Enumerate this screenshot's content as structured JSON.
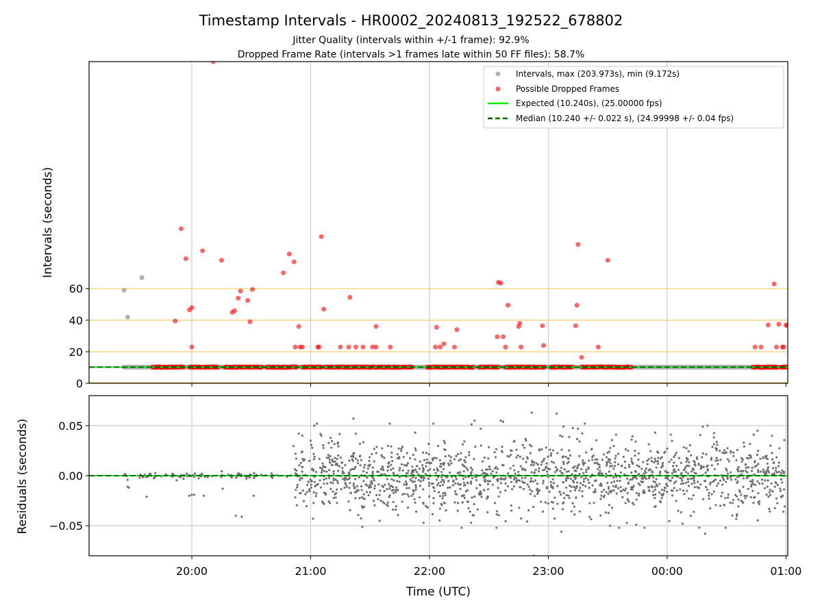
{
  "figure": {
    "title": "Timestamp Intervals - HR0002_20240813_192522_678802",
    "subtitle_1": "Jitter Quality (intervals within +/-1 frame): 92.9%",
    "subtitle_2": "Dropped Frame Rate (intervals >1 frames late within 50 FF files): 58.7%",
    "xlabel": "Time (UTC)"
  },
  "chart_data": [
    {
      "type": "scatter",
      "ylabel": "Intervals (seconds)",
      "xlim_hours": [
        19.135,
        25.015
      ],
      "ylim": [
        0,
        203.973
      ],
      "yticks": [
        0,
        20,
        40,
        60
      ],
      "x_tick_labels": [
        "20:00",
        "21:00",
        "22:00",
        "23:00",
        "00:00",
        "01:00"
      ],
      "x_tick_hours": [
        20,
        21,
        22,
        23,
        24,
        25
      ],
      "x_grid_hours": [
        20,
        21,
        22,
        23,
        24
      ],
      "reference_lines": [
        20,
        40,
        60
      ],
      "legend_position": "top-right",
      "series": [
        {
          "name": "Intervals, max (203.973s), min (9.172s)",
          "color": "#808080",
          "points": [
            [
              19.43,
              59
            ],
            [
              19.46,
              42
            ],
            [
              19.58,
              67
            ]
          ],
          "baseline_band": {
            "x_start": 19.43,
            "x_end": 24.99,
            "y": 10.24
          }
        },
        {
          "name": "Possible Dropped Frames",
          "color": "#ff0000",
          "points": [
            [
              20.18,
              203.9
            ],
            [
              19.91,
              98
            ],
            [
              19.95,
              79
            ],
            [
              20.09,
              84
            ],
            [
              20.25,
              78
            ],
            [
              19.86,
              39.5
            ],
            [
              19.98,
              46.5
            ],
            [
              20.0,
              48
            ],
            [
              20.0,
              23
            ],
            [
              20.34,
              45
            ],
            [
              20.36,
              46
            ],
            [
              20.39,
              54
            ],
            [
              20.41,
              58.5
            ],
            [
              20.47,
              52.5
            ],
            [
              20.51,
              59.5
            ],
            [
              20.49,
              39
            ],
            [
              20.77,
              70
            ],
            [
              20.82,
              82
            ],
            [
              20.86,
              77
            ],
            [
              20.87,
              23
            ],
            [
              20.9,
              36
            ],
            [
              20.91,
              23
            ],
            [
              20.93,
              23
            ],
            [
              21.06,
              23
            ],
            [
              21.07,
              23
            ],
            [
              21.09,
              93
            ],
            [
              21.11,
              47
            ],
            [
              21.25,
              23
            ],
            [
              21.32,
              23
            ],
            [
              21.33,
              54.5
            ],
            [
              21.38,
              23
            ],
            [
              21.44,
              23
            ],
            [
              21.52,
              23
            ],
            [
              21.55,
              23
            ],
            [
              21.55,
              36
            ],
            [
              21.67,
              23
            ],
            [
              22.05,
              23
            ],
            [
              22.06,
              35.5
            ],
            [
              22.09,
              23
            ],
            [
              22.12,
              25
            ],
            [
              22.21,
              23
            ],
            [
              22.23,
              34
            ],
            [
              22.57,
              29.5
            ],
            [
              22.58,
              64
            ],
            [
              22.6,
              63.5
            ],
            [
              22.62,
              29.5
            ],
            [
              22.64,
              23
            ],
            [
              22.66,
              49.5
            ],
            [
              22.75,
              36
            ],
            [
              22.76,
              38
            ],
            [
              22.77,
              23
            ],
            [
              22.95,
              36.5
            ],
            [
              22.96,
              24
            ],
            [
              23.23,
              36.5
            ],
            [
              23.24,
              49.5
            ],
            [
              23.25,
              88
            ],
            [
              23.28,
              16.5
            ],
            [
              23.42,
              23
            ],
            [
              23.5,
              78
            ],
            [
              24.74,
              23
            ],
            [
              24.79,
              23
            ],
            [
              24.85,
              37
            ],
            [
              24.9,
              63
            ],
            [
              24.92,
              23
            ],
            [
              24.94,
              37.5
            ],
            [
              24.97,
              23
            ],
            [
              24.98,
              23
            ],
            [
              25.0,
              37
            ],
            [
              25.01,
              36.5
            ],
            [
              19.93,
              10.24
            ],
            [
              20.56,
              10.24
            ],
            [
              21.85,
              10.24
            ],
            [
              23.7,
              10.24
            ],
            [
              24.8,
              10.24
            ],
            [
              25.0,
              10.24
            ]
          ],
          "dense_runs_at_expected": [
            [
              19.67,
              19.92
            ],
            [
              19.98,
              20.08
            ],
            [
              20.1,
              20.22
            ],
            [
              20.28,
              20.59
            ],
            [
              20.63,
              20.88
            ],
            [
              20.93,
              21.09
            ],
            [
              21.12,
              21.85
            ],
            [
              21.98,
              22.37
            ],
            [
              22.42,
              22.58
            ],
            [
              22.64,
              22.97
            ],
            [
              23.02,
              23.2
            ],
            [
              23.28,
              23.69
            ],
            [
              24.72,
              24.93
            ],
            [
              24.96,
              25.01
            ]
          ]
        },
        {
          "name": "Expected (10.240s), (25.00000 fps)",
          "color": "#00ee00",
          "y": 10.24
        },
        {
          "name": "Median (10.240 +/- 0.022 s), (24.99998 +/- 0.04 fps)",
          "color": "#006400",
          "y": 10.24
        }
      ]
    },
    {
      "type": "scatter",
      "ylabel": "Residuals (seconds)",
      "xlim_hours": [
        19.135,
        25.015
      ],
      "ylim": [
        -0.08,
        0.08
      ],
      "yticks": [
        0.05,
        0.0,
        -0.05
      ],
      "ytick_labels": [
        "0.05",
        "0.00",
        "−0.05"
      ],
      "x_tick_labels": [
        "20:00",
        "21:00",
        "22:00",
        "23:00",
        "00:00",
        "01:00"
      ],
      "x_tick_hours": [
        20,
        21,
        22,
        23,
        24,
        25
      ],
      "grid": true,
      "series": [
        {
          "color": "#707070",
          "note": "approx. 1700 residual points; near zero before 20:50 (spread ~+/-0.005), then spread ~+/-0.025 with outliers to +/-0.06",
          "outliers": [
            [
              19.46,
              -0.011
            ],
            [
              19.47,
              -0.012
            ],
            [
              19.62,
              -0.021
            ],
            [
              19.98,
              -0.02
            ],
            [
              20.0,
              -0.019
            ],
            [
              20.02,
              -0.019
            ],
            [
              20.1,
              -0.02
            ],
            [
              20.26,
              -0.013
            ],
            [
              20.37,
              -0.04
            ],
            [
              20.42,
              -0.041
            ],
            [
              20.52,
              -0.02
            ],
            [
              20.9,
              0.042
            ],
            [
              20.93,
              0.04
            ],
            [
              21.0,
              0.035
            ],
            [
              21.02,
              -0.043
            ],
            [
              21.03,
              0.05
            ],
            [
              21.09,
              0.04
            ],
            [
              21.36,
              0.057
            ],
            [
              21.38,
              0.042
            ],
            [
              21.58,
              -0.045
            ],
            [
              21.88,
              0.043
            ],
            [
              21.95,
              -0.047
            ],
            [
              22.35,
              -0.047
            ],
            [
              22.38,
              0.055
            ],
            [
              22.6,
              0.055
            ],
            [
              22.62,
              0.054
            ],
            [
              22.86,
              0.063
            ],
            [
              22.88,
              -0.08
            ],
            [
              23.07,
              0.062
            ],
            [
              23.11,
              -0.056
            ],
            [
              23.25,
              0.047
            ],
            [
              23.52,
              -0.05
            ],
            [
              23.57,
              0.041
            ],
            [
              23.74,
              -0.049
            ],
            [
              24.03,
              0.041
            ],
            [
              24.13,
              -0.048
            ],
            [
              24.27,
              -0.052
            ],
            [
              24.3,
              0.049
            ],
            [
              24.34,
              0.05
            ],
            [
              24.32,
              -0.058
            ],
            [
              24.76,
              0.045
            ],
            [
              24.87,
              0.03
            ],
            [
              24.95,
              -0.013
            ]
          ]
        },
        {
          "color": "#00ee00",
          "y": 0.0
        }
      ]
    }
  ]
}
